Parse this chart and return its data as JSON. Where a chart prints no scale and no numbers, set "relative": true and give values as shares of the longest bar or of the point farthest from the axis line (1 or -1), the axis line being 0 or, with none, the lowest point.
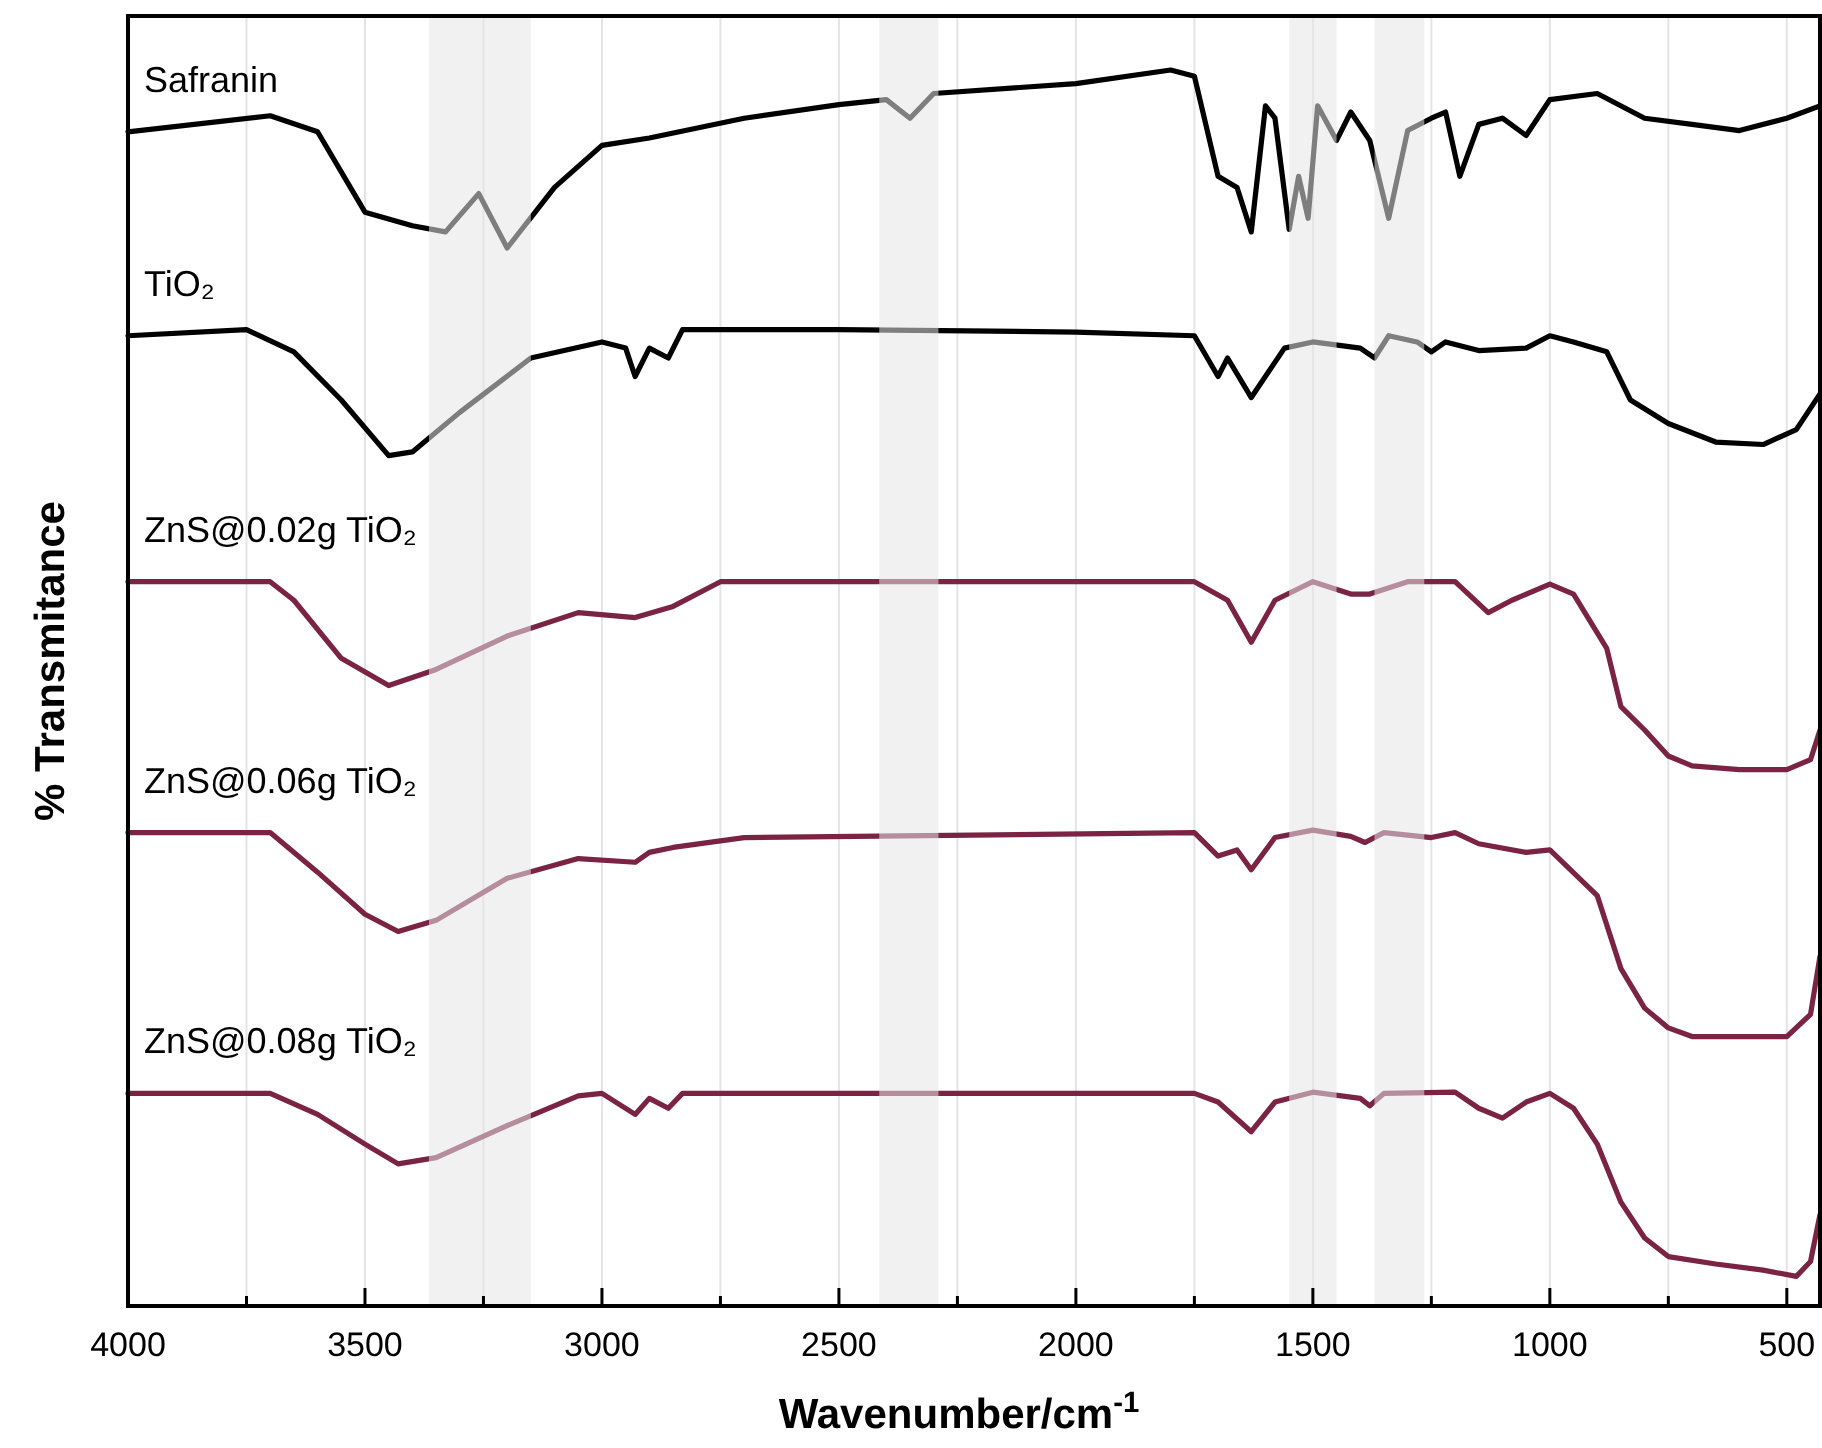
{
  "chart_data": {
    "type": "line",
    "relative": true,
    "xlabel": "Wavenumber/cm$^{-1}$",
    "ylabel": "% Transmitance",
    "xlim": [
      4000,
      430
    ],
    "xticks": [
      4000,
      {
        "value": 3750,
        "label": null
      },
      3500,
      {
        "value": 3250,
        "label": null
      },
      3000,
      {
        "value": 2750,
        "label": null
      },
      2500,
      {
        "value": 2250,
        "label": null
      },
      2000,
      {
        "value": 1750,
        "label": null
      },
      1500,
      {
        "value": 1250,
        "label": null
      },
      1000,
      {
        "value": 750,
        "label": null
      },
      500
    ],
    "grid": "x",
    "legend": false,
    "line_style": "solid",
    "bands": [
      {
        "axis": "x",
        "from": 3365,
        "to": 3150,
        "color": "#e6e6e6"
      },
      {
        "axis": "x",
        "from": 2415,
        "to": 2290,
        "color": "#e6e6e6"
      },
      {
        "axis": "x",
        "from": 1550,
        "to": 1450,
        "color": "#e6e6e6"
      },
      {
        "axis": "x",
        "from": 1370,
        "to": 1265,
        "color": "#e6e6e6"
      }
    ],
    "series": [
      {
        "name": "Safranin",
        "color": "#000000",
        "x": [
          4000,
          3700,
          3600,
          3500,
          3400,
          3330,
          3260,
          3200,
          3100,
          3000,
          2900,
          2700,
          2500,
          2400,
          2350,
          2300,
          2000,
          1800,
          1750,
          1700,
          1660,
          1630,
          1600,
          1580,
          1550,
          1530,
          1510,
          1490,
          1450,
          1420,
          1380,
          1340,
          1300,
          1250,
          1220,
          1190,
          1150,
          1100,
          1050,
          1000,
          900,
          800,
          700,
          600,
          500,
          430
        ],
        "values": [
          0.95,
          0.963,
          0.95,
          0.885,
          0.874,
          0.869,
          0.9,
          0.856,
          0.905,
          0.939,
          0.945,
          0.961,
          0.972,
          0.976,
          0.961,
          0.981,
          0.989,
          1,
          0.995,
          0.914,
          0.905,
          0.869,
          0.971,
          0.961,
          0.871,
          0.914,
          0.88,
          0.971,
          0.943,
          0.966,
          0.943,
          0.88,
          0.951,
          0.961,
          0.966,
          0.914,
          0.956,
          0.961,
          0.947,
          0.976,
          0.981,
          0.961,
          0.956,
          0.951,
          0.961,
          0.971
        ]
      },
      {
        "name": "TiO₂",
        "color": "#000000",
        "x": [
          4000,
          3750,
          3650,
          3550,
          3450,
          3400,
          3300,
          3150,
          3000,
          2950,
          2930,
          2900,
          2860,
          2830,
          2500,
          2000,
          1750,
          1700,
          1680,
          1630,
          1560,
          1500,
          1400,
          1370,
          1340,
          1280,
          1250,
          1220,
          1150,
          1050,
          1000,
          950,
          880,
          830,
          750,
          650,
          550,
          480,
          430
        ],
        "values": [
          0.785,
          0.79,
          0.772,
          0.733,
          0.688,
          0.691,
          0.723,
          0.767,
          0.78,
          0.775,
          0.752,
          0.775,
          0.767,
          0.79,
          0.79,
          0.788,
          0.785,
          0.752,
          0.767,
          0.735,
          0.775,
          0.78,
          0.775,
          0.767,
          0.785,
          0.78,
          0.772,
          0.78,
          0.773,
          0.775,
          0.785,
          0.78,
          0.772,
          0.733,
          0.714,
          0.699,
          0.697,
          0.709,
          0.738
        ]
      },
      {
        "name": "ZnS@0.02g TiO₂",
        "color": "#7b2343",
        "x": [
          4000,
          3700,
          3650,
          3550,
          3450,
          3350,
          3200,
          3050,
          2930,
          2850,
          2750,
          1750,
          1680,
          1630,
          1580,
          1500,
          1420,
          1380,
          1300,
          1200,
          1130,
          1080,
          1000,
          950,
          880,
          850,
          800,
          750,
          700,
          600,
          500,
          450,
          430
        ],
        "values": [
          0.586,
          0.586,
          0.571,
          0.524,
          0.502,
          0.515,
          0.542,
          0.561,
          0.557,
          0.566,
          0.586,
          0.586,
          0.571,
          0.537,
          0.571,
          0.586,
          0.576,
          0.576,
          0.586,
          0.586,
          0.561,
          0.571,
          0.584,
          0.576,
          0.532,
          0.485,
          0.466,
          0.445,
          0.437,
          0.434,
          0.434,
          0.442,
          0.466
        ]
      },
      {
        "name": "ZnS@0.06g TiO₂",
        "color": "#7b2343",
        "x": [
          4000,
          3700,
          3600,
          3500,
          3430,
          3350,
          3200,
          3050,
          2930,
          2900,
          2850,
          2700,
          1750,
          1700,
          1660,
          1630,
          1580,
          1500,
          1420,
          1390,
          1350,
          1250,
          1200,
          1150,
          1050,
          1000,
          900,
          850,
          800,
          750,
          700,
          500,
          450,
          430
        ],
        "values": [
          0.383,
          0.383,
          0.351,
          0.317,
          0.303,
          0.312,
          0.346,
          0.362,
          0.359,
          0.367,
          0.371,
          0.379,
          0.383,
          0.364,
          0.369,
          0.353,
          0.379,
          0.385,
          0.38,
          0.375,
          0.383,
          0.379,
          0.383,
          0.374,
          0.367,
          0.369,
          0.332,
          0.273,
          0.241,
          0.225,
          0.218,
          0.218,
          0.236,
          0.283
        ]
      },
      {
        "name": "ZnS@0.08g TiO₂",
        "color": "#7b2343",
        "x": [
          4000,
          3700,
          3600,
          3500,
          3430,
          3350,
          3200,
          3050,
          3000,
          2930,
          2900,
          2860,
          2830,
          1750,
          1700,
          1630,
          1580,
          1500,
          1400,
          1380,
          1350,
          1200,
          1150,
          1100,
          1050,
          1000,
          950,
          900,
          850,
          800,
          750,
          650,
          550,
          480,
          450,
          430
        ],
        "values": [
          0.172,
          0.172,
          0.155,
          0.131,
          0.115,
          0.12,
          0.146,
          0.17,
          0.172,
          0.155,
          0.168,
          0.16,
          0.172,
          0.172,
          0.165,
          0.141,
          0.165,
          0.173,
          0.168,
          0.162,
          0.172,
          0.173,
          0.16,
          0.152,
          0.165,
          0.172,
          0.16,
          0.131,
          0.084,
          0.055,
          0.04,
          0.034,
          0.029,
          0.024,
          0.036,
          0.074
        ]
      }
    ]
  }
}
